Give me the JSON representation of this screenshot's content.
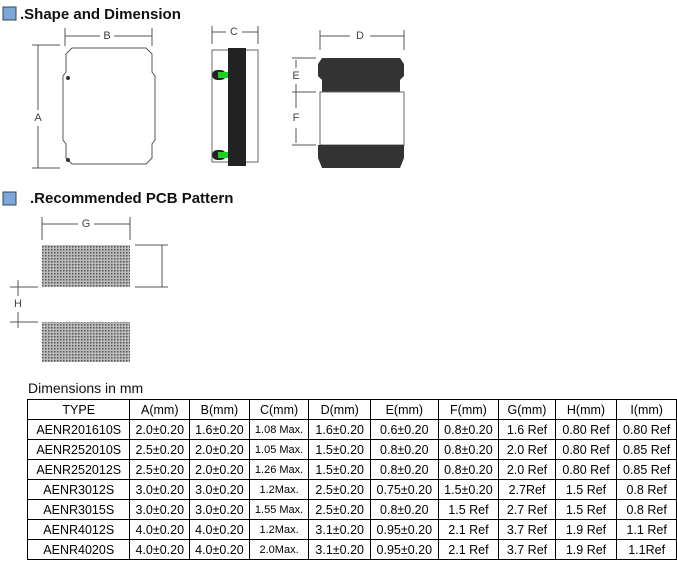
{
  "header": {
    "shape_title": ".Shape and Dimension",
    "pcb_title": ".Recommended PCB Pattern"
  },
  "drawing": {
    "labels": {
      "a": "A",
      "b": "B",
      "c": "C",
      "d": "D",
      "e": "E",
      "f": "F",
      "g": "G",
      "h": "H"
    }
  },
  "table": {
    "caption": "Dimensions in mm",
    "header": [
      "TYPE",
      "A(mm)",
      "B(mm)",
      "C(mm)",
      "D(mm)",
      "E(mm)",
      "F(mm)",
      "G(mm)",
      "H(mm)",
      "I(mm)"
    ],
    "rows": [
      [
        "AENR201610S",
        "2.0±0.20",
        "1.6±0.20",
        "1.08 Max.",
        "1.6±0.20",
        "0.6±0.20",
        "0.8±0.20",
        "1.6 Ref",
        "0.80 Ref",
        "0.80 Ref"
      ],
      [
        "AENR252010S",
        "2.5±0.20",
        "2.0±0.20",
        "1.05 Max.",
        "1.5±0.20",
        "0.8±0.20",
        "0.8±0.20",
        "2.0 Ref",
        "0.80 Ref",
        "0.85 Ref"
      ],
      [
        "AENR252012S",
        "2.5±0.20",
        "2.0±0.20",
        "1.26 Max.",
        "1.5±0.20",
        "0.8±0.20",
        "0.8±0.20",
        "2.0 Ref",
        "0.80 Ref",
        "0.85 Ref"
      ],
      [
        "AENR3012S",
        "3.0±0.20",
        "3.0±0.20",
        "1.2Max.",
        "2.5±0.20",
        "0.75±0.20",
        "1.5±0.20",
        "2.7Ref",
        "1.5 Ref",
        "0.8 Ref"
      ],
      [
        "AENR3015S",
        "3.0±0.20",
        "3.0±0.20",
        "1.55 Max.",
        "2.5±0.20",
        "0.8±0.20",
        "1.5 Ref",
        "2.7 Ref",
        "1.5 Ref",
        "0.8 Ref"
      ],
      [
        "AENR4012S",
        "4.0±0.20",
        "4.0±0.20",
        "1.2Max.",
        "3.1±0.20",
        "0.95±0.20",
        "2.1 Ref",
        "3.7 Ref",
        "1.9 Ref",
        "1.1 Ref"
      ],
      [
        "AENR4020S",
        "4.0±0.20",
        "4.0±0.20",
        "2.0Max.",
        "3.1±0.20",
        "0.95±0.20",
        "2.1 Ref",
        "3.7 Ref",
        "1.9 Ref",
        "1.1Ref"
      ]
    ]
  }
}
